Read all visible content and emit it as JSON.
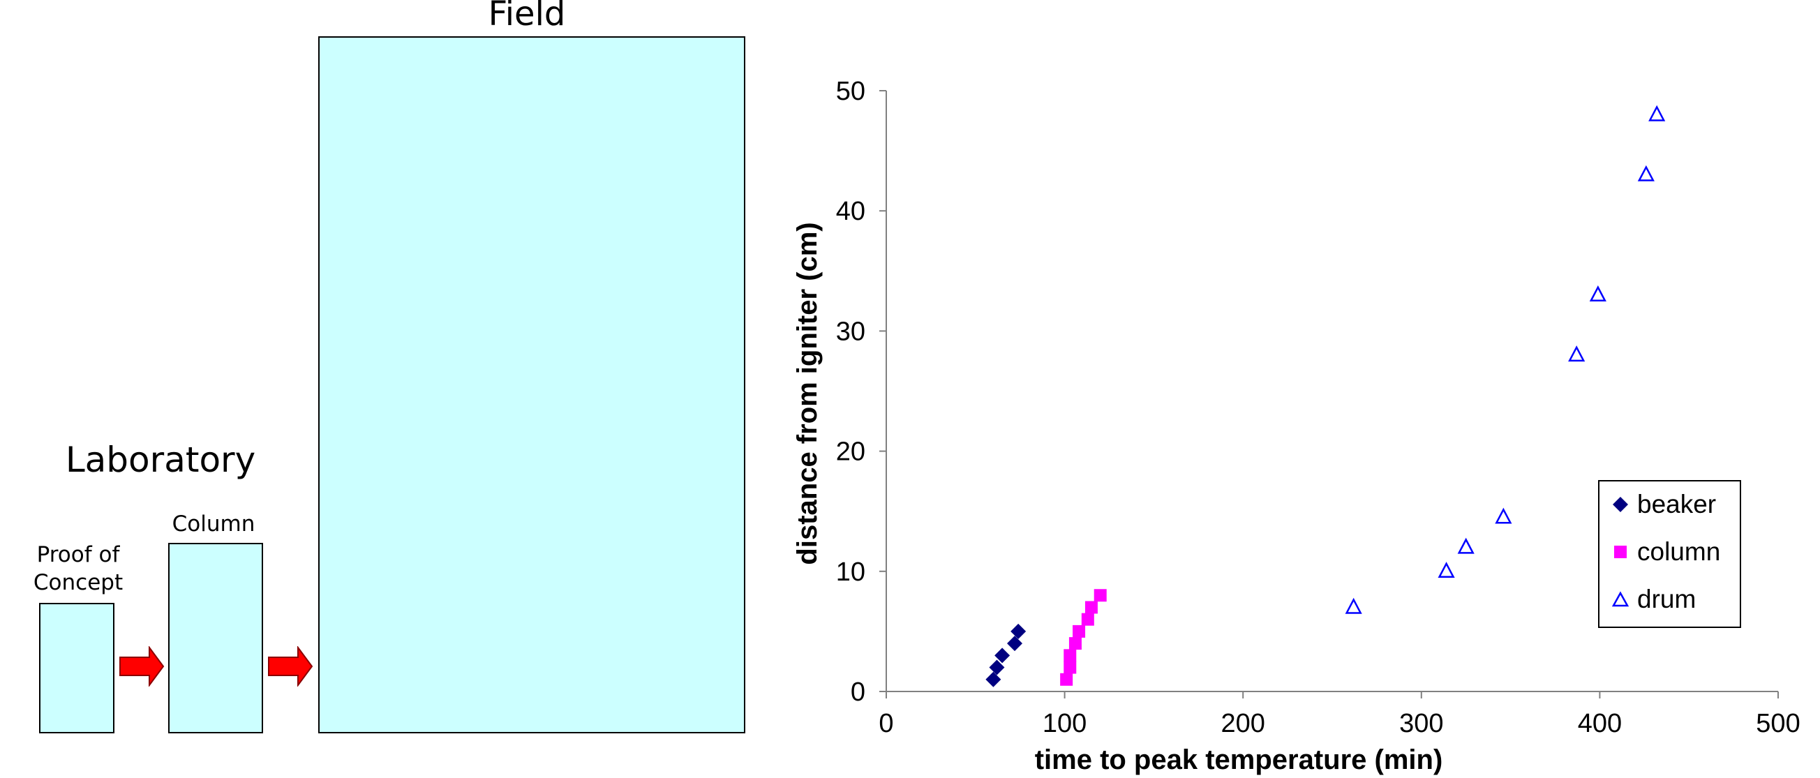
{
  "diagram": {
    "laboratory_label": "Laboratory",
    "field_label": "Field",
    "proof_of_concept_label": "Proof of\nConcept",
    "column_label": "Column",
    "box_color": "#ccffff",
    "arrow_color": "#ff0000"
  },
  "chart_data": {
    "type": "scatter",
    "title": "",
    "xlabel": "time to peak temperature (min)",
    "ylabel": "distance from igniter (cm)",
    "xlim": [
      0,
      500
    ],
    "ylim": [
      0,
      50
    ],
    "xticks": [
      "0",
      "100",
      "200",
      "300",
      "400",
      "500"
    ],
    "yticks": [
      "0",
      "10",
      "20",
      "30",
      "40",
      "50"
    ],
    "grid": false,
    "legend_position": "bottom-right",
    "series": [
      {
        "name": "beaker",
        "marker": "diamond",
        "color": "#000080",
        "points": [
          [
            60,
            1
          ],
          [
            62,
            2
          ],
          [
            65,
            3
          ],
          [
            72,
            4
          ],
          [
            74,
            5
          ]
        ]
      },
      {
        "name": "column",
        "marker": "square",
        "color": "#ff00ff",
        "points": [
          [
            101,
            1
          ],
          [
            103,
            2
          ],
          [
            103,
            3
          ],
          [
            106,
            4
          ],
          [
            108,
            5
          ],
          [
            113,
            6
          ],
          [
            115,
            7
          ],
          [
            120,
            8
          ]
        ]
      },
      {
        "name": "drum",
        "marker": "triangle-open",
        "color": "#0000ff",
        "points": [
          [
            262,
            7
          ],
          [
            314,
            10
          ],
          [
            325,
            12
          ],
          [
            346,
            14.5
          ],
          [
            387,
            28
          ],
          [
            399,
            33
          ],
          [
            426,
            43
          ],
          [
            432,
            48
          ]
        ]
      }
    ]
  }
}
